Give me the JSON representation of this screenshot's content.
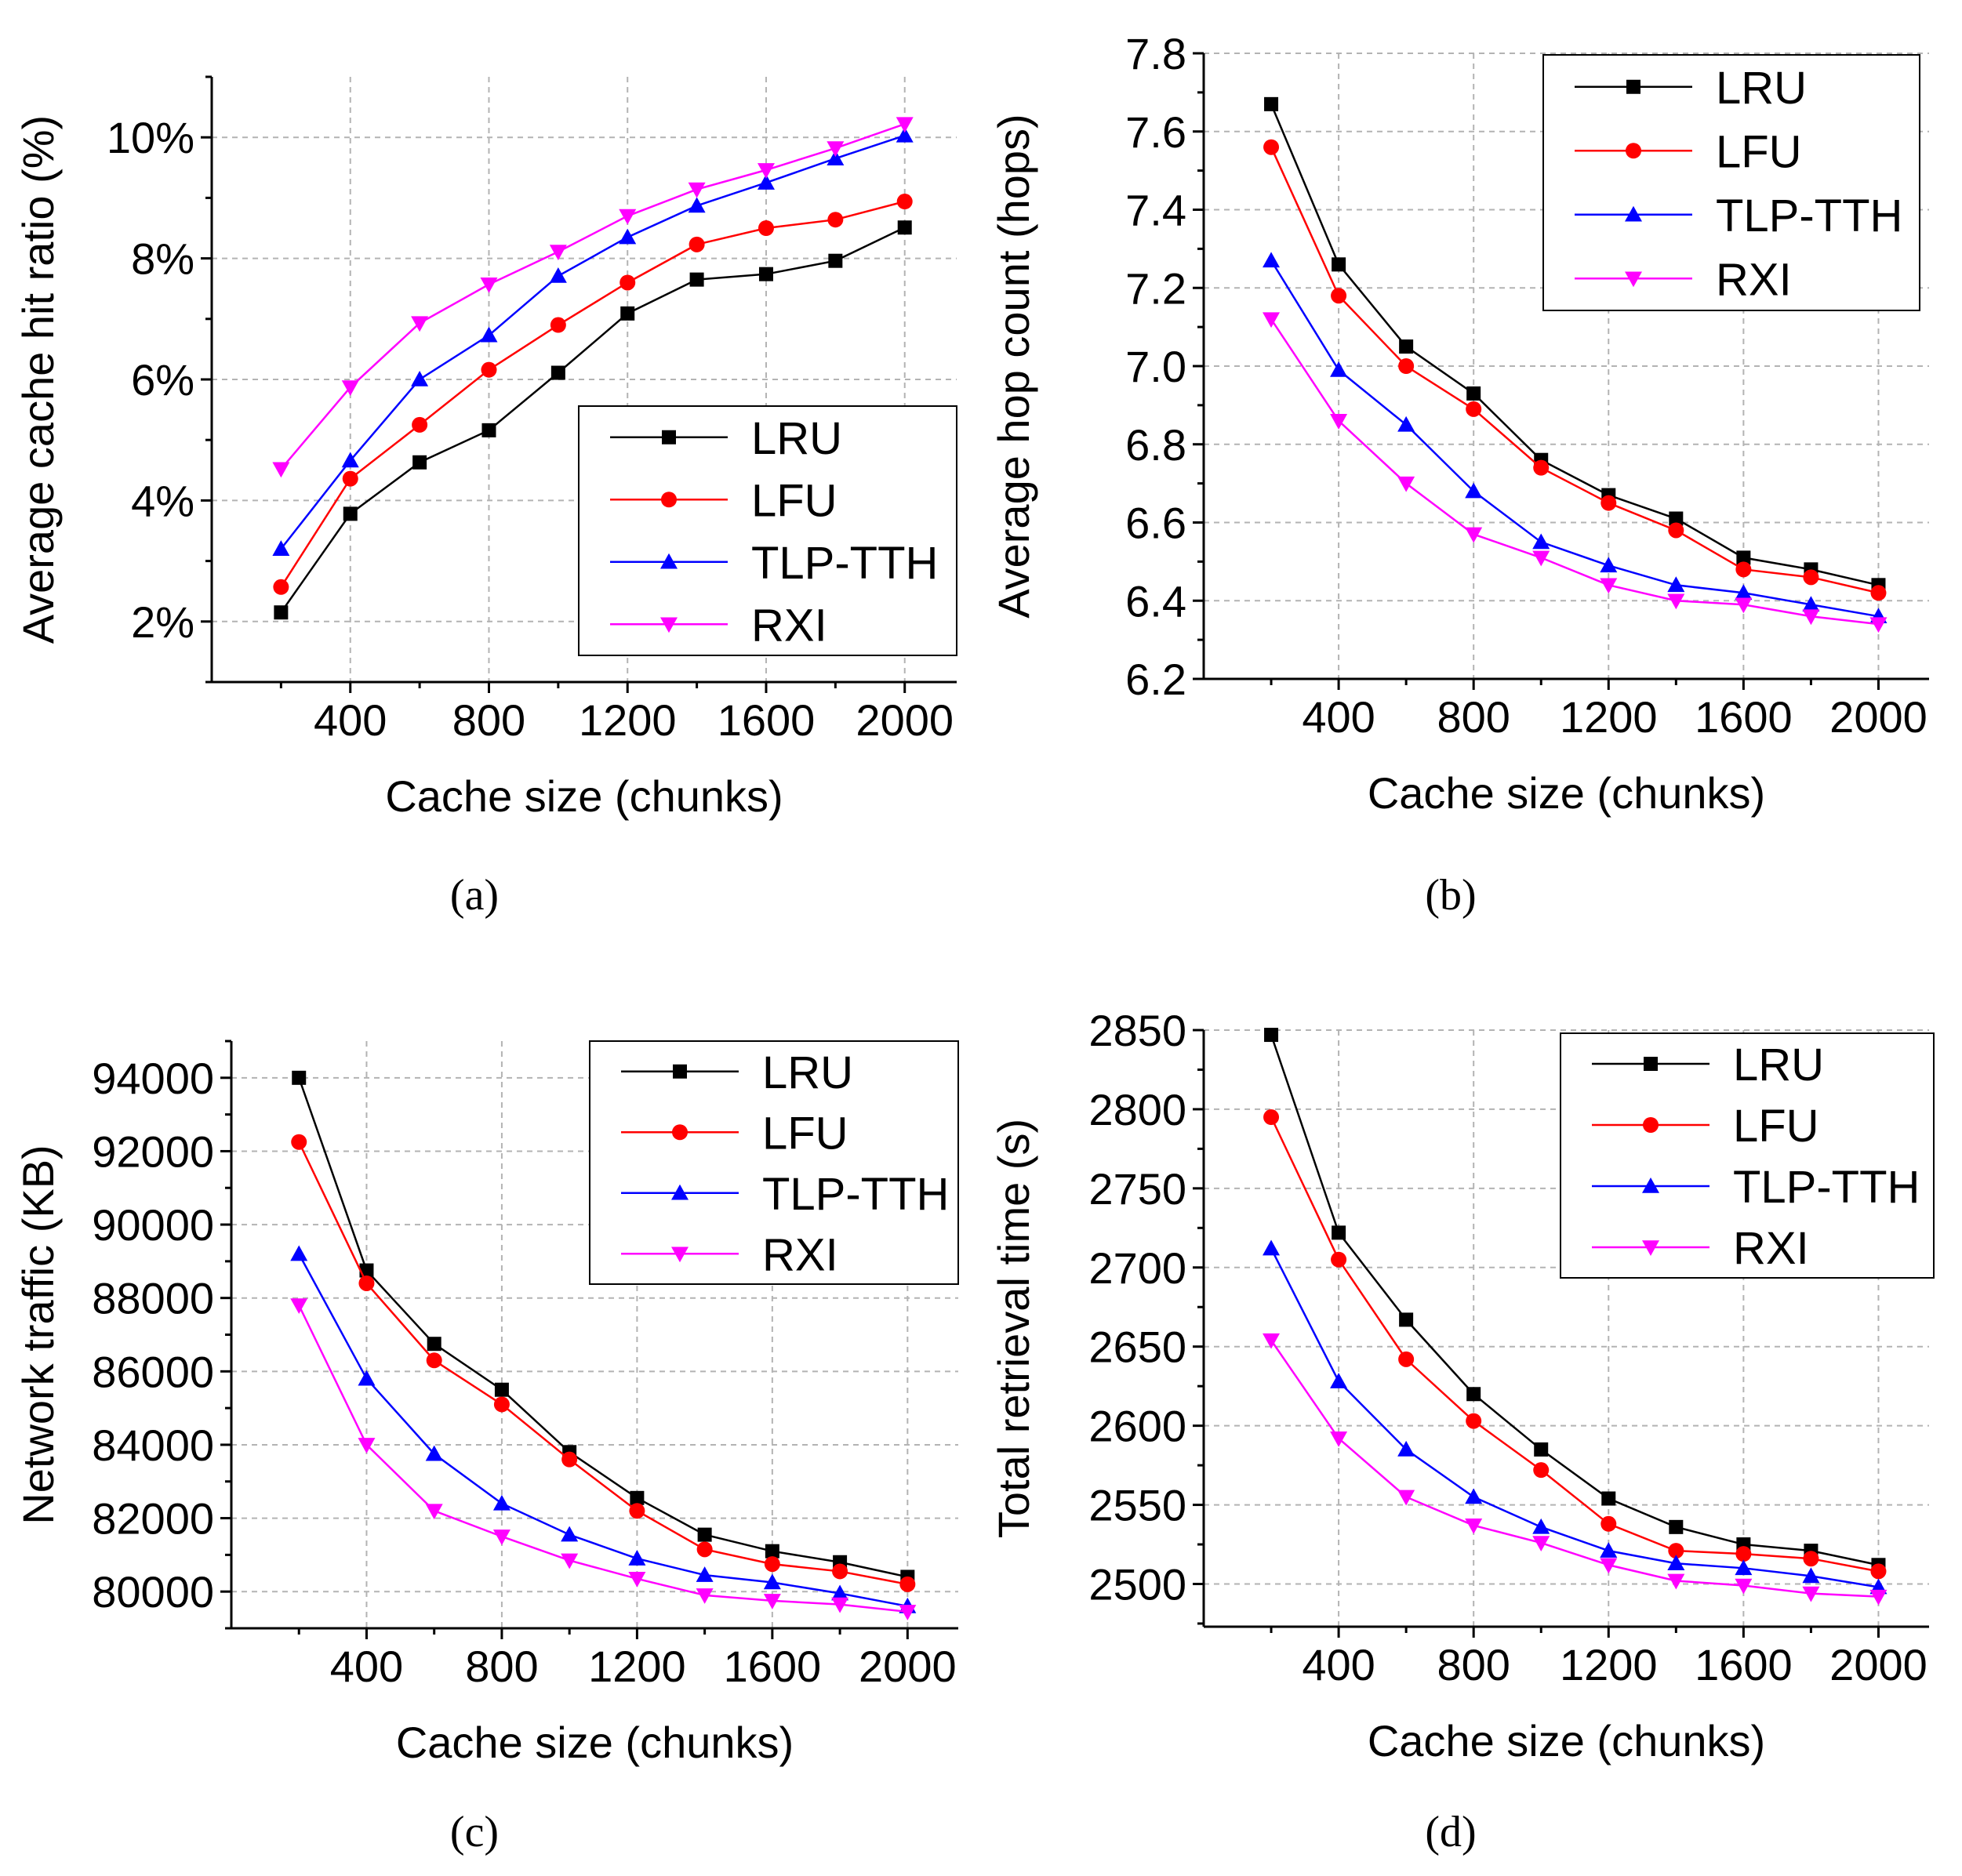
{
  "colors": {
    "LRU": "#000000",
    "LFU": "#ff0000",
    "TLP-TTH": "#0000ff",
    "RXI": "#ff00ff"
  },
  "chart_data": [
    {
      "type": "line",
      "caption": "(a)",
      "xlabel": "Cache size (chunks)",
      "ylabel": "Average cache hit ratio (%)",
      "x": [
        200,
        400,
        600,
        800,
        1000,
        1200,
        1400,
        1600,
        1800,
        2000
      ],
      "xlim": [
        0,
        2150
      ],
      "xticks": [
        400,
        800,
        1200,
        1600,
        2000
      ],
      "xtick_labels": [
        "400",
        "800",
        "1200",
        "1600",
        "2000"
      ],
      "ylim": [
        1.0,
        11.0
      ],
      "yticks": [
        2,
        4,
        6,
        8,
        10
      ],
      "ytick_labels": [
        "2%",
        "4%",
        "6%",
        "8%",
        "10%"
      ],
      "legend_position": "bottom-right",
      "series": [
        {
          "name": "LRU",
          "marker": "square",
          "values": [
            2.15,
            3.78,
            4.63,
            5.16,
            6.11,
            7.09,
            7.65,
            7.74,
            7.96,
            8.51
          ]
        },
        {
          "name": "LFU",
          "marker": "circle",
          "values": [
            2.57,
            4.36,
            5.25,
            6.16,
            6.9,
            7.6,
            8.23,
            8.5,
            8.64,
            8.94
          ]
        },
        {
          "name": "TLP-TTH",
          "marker": "triangle-up",
          "values": [
            3.2,
            4.66,
            6.0,
            6.73,
            7.71,
            8.35,
            8.87,
            9.25,
            9.65,
            10.03
          ]
        },
        {
          "name": "RXI",
          "marker": "triangle-down",
          "values": [
            4.52,
            5.87,
            6.93,
            7.57,
            8.11,
            8.7,
            9.14,
            9.46,
            9.82,
            10.22
          ]
        }
      ]
    },
    {
      "type": "line",
      "caption": "(b)",
      "xlabel": "Cache size (chunks)",
      "ylabel": "Average hop count (hops)",
      "x": [
        200,
        400,
        600,
        800,
        1000,
        1200,
        1400,
        1600,
        1800,
        2000
      ],
      "xlim": [
        0,
        2150
      ],
      "xticks": [
        400,
        800,
        1200,
        1600,
        2000
      ],
      "xtick_labels": [
        "400",
        "800",
        "1200",
        "1600",
        "2000"
      ],
      "ylim": [
        6.2,
        7.8
      ],
      "yticks": [
        6.2,
        6.4,
        6.6,
        6.8,
        7.0,
        7.2,
        7.4,
        7.6,
        7.8
      ],
      "ytick_labels": [
        "6.2",
        "6.4",
        "6.6",
        "6.8",
        "7.0",
        "7.2",
        "7.4",
        "7.6",
        "7.8"
      ],
      "legend_position": "top-right",
      "series": [
        {
          "name": "LRU",
          "marker": "square",
          "values": [
            7.67,
            7.26,
            7.05,
            6.93,
            6.76,
            6.67,
            6.61,
            6.51,
            6.48,
            6.44
          ]
        },
        {
          "name": "LFU",
          "marker": "circle",
          "values": [
            7.56,
            7.18,
            7.0,
            6.89,
            6.74,
            6.65,
            6.58,
            6.48,
            6.46,
            6.42
          ]
        },
        {
          "name": "TLP-TTH",
          "marker": "triangle-up",
          "values": [
            7.27,
            6.99,
            6.85,
            6.68,
            6.55,
            6.49,
            6.44,
            6.42,
            6.39,
            6.36
          ]
        },
        {
          "name": "RXI",
          "marker": "triangle-down",
          "values": [
            7.12,
            6.86,
            6.7,
            6.57,
            6.51,
            6.44,
            6.4,
            6.39,
            6.36,
            6.34
          ]
        }
      ]
    },
    {
      "type": "line",
      "caption": "(c)",
      "xlabel": "Cache size (chunks)",
      "ylabel": "Network traffic (KB)",
      "x": [
        200,
        400,
        600,
        800,
        1000,
        1200,
        1400,
        1600,
        1800,
        2000
      ],
      "xlim": [
        0,
        2150
      ],
      "xticks": [
        400,
        800,
        1200,
        1600,
        2000
      ],
      "xtick_labels": [
        "400",
        "800",
        "1200",
        "1600",
        "2000"
      ],
      "ylim": [
        79000,
        95000
      ],
      "yticks": [
        80000,
        82000,
        84000,
        86000,
        88000,
        90000,
        92000,
        94000
      ],
      "ytick_labels": [
        "80000",
        "82000",
        "84000",
        "86000",
        "88000",
        "90000",
        "92000",
        "94000"
      ],
      "legend_position": "top-right",
      "series": [
        {
          "name": "LRU",
          "marker": "square",
          "values": [
            94000,
            88750,
            86750,
            85500,
            83800,
            82550,
            81550,
            81100,
            80800,
            80400
          ]
        },
        {
          "name": "LFU",
          "marker": "circle",
          "values": [
            92250,
            88400,
            86300,
            85100,
            83600,
            82200,
            81150,
            80750,
            80550,
            80200
          ]
        },
        {
          "name": "TLP-TTH",
          "marker": "triangle-up",
          "values": [
            89200,
            85800,
            83750,
            82400,
            81550,
            80900,
            80450,
            80250,
            79950,
            79600
          ]
        },
        {
          "name": "RXI",
          "marker": "triangle-down",
          "values": [
            87800,
            84000,
            82200,
            81500,
            80850,
            80350,
            79900,
            79750,
            79650,
            79450
          ]
        }
      ]
    },
    {
      "type": "line",
      "caption": "(d)",
      "xlabel": "Cache size (chunks)",
      "ylabel": "Total retrieval time (s)",
      "x": [
        200,
        400,
        600,
        800,
        1000,
        1200,
        1400,
        1600,
        1800,
        2000
      ],
      "xlim": [
        0,
        2150
      ],
      "xticks": [
        400,
        800,
        1200,
        1600,
        2000
      ],
      "xtick_labels": [
        "400",
        "800",
        "1200",
        "1600",
        "2000"
      ],
      "ylim": [
        2473,
        2850
      ],
      "yticks": [
        2500,
        2550,
        2600,
        2650,
        2700,
        2750,
        2800,
        2850
      ],
      "ytick_labels": [
        "2500",
        "2550",
        "2600",
        "2650",
        "2700",
        "2750",
        "2800",
        "2850"
      ],
      "legend_position": "top-right",
      "series": [
        {
          "name": "LRU",
          "marker": "square",
          "values": [
            2847,
            2722,
            2667,
            2620,
            2585,
            2554,
            2536,
            2525,
            2521,
            2512
          ]
        },
        {
          "name": "LFU",
          "marker": "circle",
          "values": [
            2795,
            2705,
            2642,
            2603,
            2572,
            2538,
            2521,
            2519,
            2516,
            2508
          ]
        },
        {
          "name": "TLP-TTH",
          "marker": "triangle-up",
          "values": [
            2712,
            2628,
            2585,
            2555,
            2536,
            2521,
            2513,
            2510,
            2505,
            2498
          ]
        },
        {
          "name": "RXI",
          "marker": "triangle-down",
          "values": [
            2654,
            2592,
            2555,
            2537,
            2526,
            2512,
            2502,
            2499,
            2494,
            2492
          ]
        }
      ]
    }
  ]
}
